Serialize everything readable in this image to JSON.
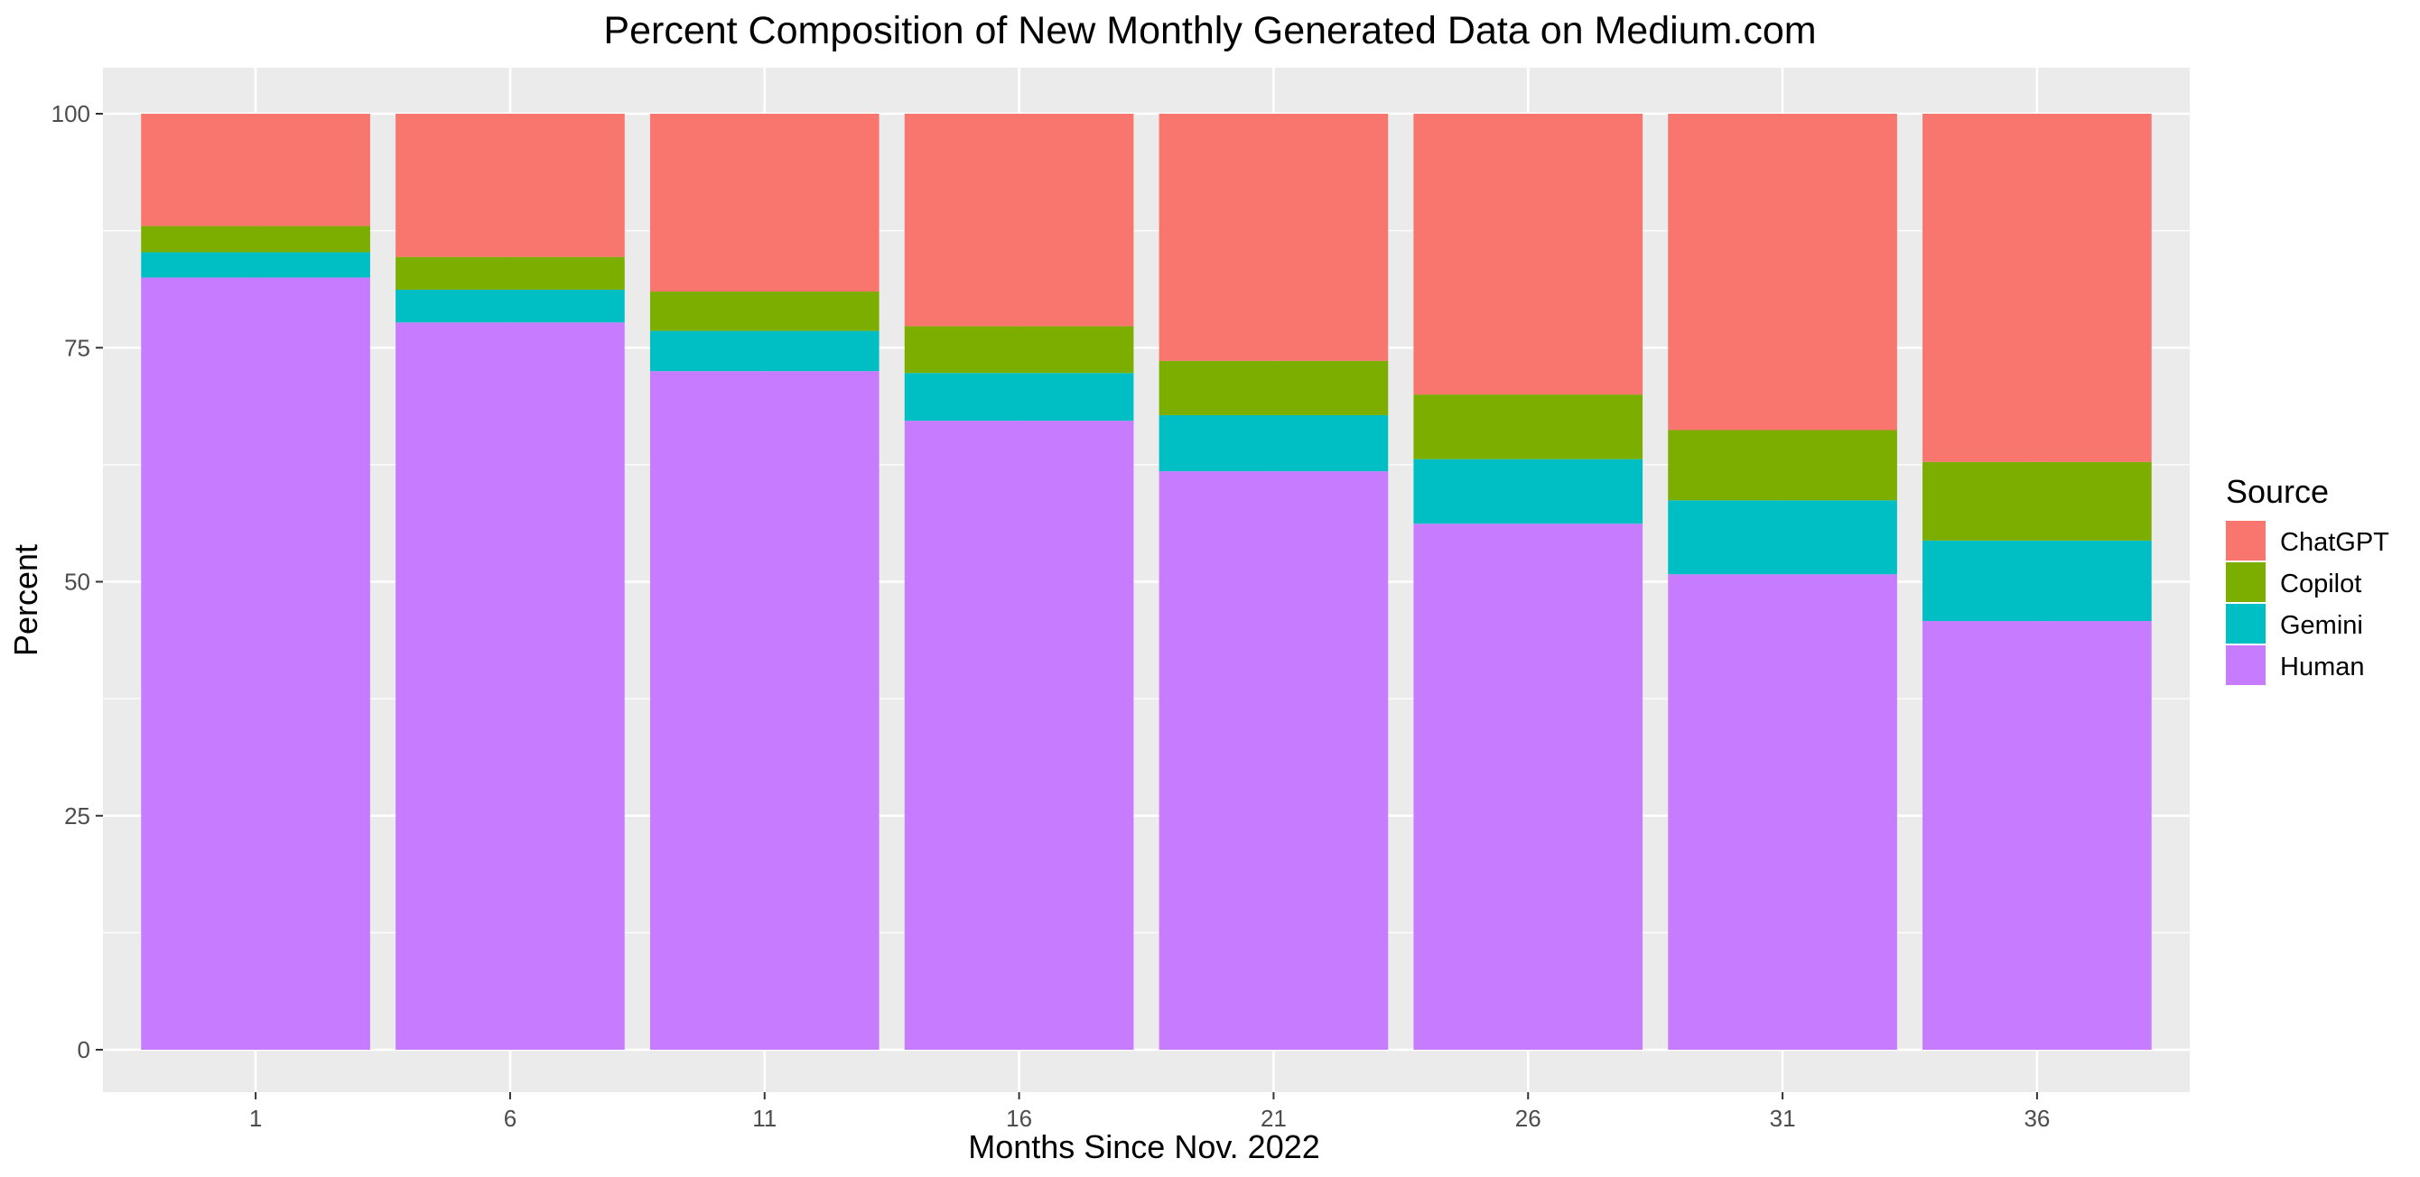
{
  "chart_data": {
    "type": "bar",
    "stacked": true,
    "title": "Percent Composition of New Monthly Generated Data on Medium.com",
    "xlabel": "Months Since Nov. 2022",
    "ylabel": "Percent",
    "categories": [
      "1",
      "6",
      "11",
      "16",
      "21",
      "26",
      "31",
      "36"
    ],
    "ylim": [
      0,
      100
    ],
    "yticks": [
      0,
      25,
      50,
      75,
      100
    ],
    "grid": true,
    "legend": {
      "title": "Source",
      "placement": "right"
    },
    "series": [
      {
        "name": "Human",
        "color": "#C77CFF",
        "values": [
          82.5,
          77.7,
          72.5,
          67.2,
          61.8,
          56.2,
          50.8,
          45.8
        ]
      },
      {
        "name": "Gemini",
        "color": "#00BFC4",
        "values": [
          2.7,
          3.5,
          4.3,
          5.1,
          6.0,
          6.9,
          7.9,
          8.6
        ]
      },
      {
        "name": "Copilot",
        "color": "#7CAE00",
        "values": [
          2.8,
          3.5,
          4.2,
          5.0,
          5.8,
          6.9,
          7.5,
          8.4
        ]
      },
      {
        "name": "ChatGPT",
        "color": "#F8766D",
        "values": [
          12.0,
          15.3,
          19.0,
          22.7,
          26.4,
          30.0,
          33.8,
          37.2
        ]
      }
    ],
    "legend_order": [
      "ChatGPT",
      "Copilot",
      "Gemini",
      "Human"
    ],
    "panel_background": "#EBEBEB",
    "grid_color": "#FFFFFF"
  }
}
